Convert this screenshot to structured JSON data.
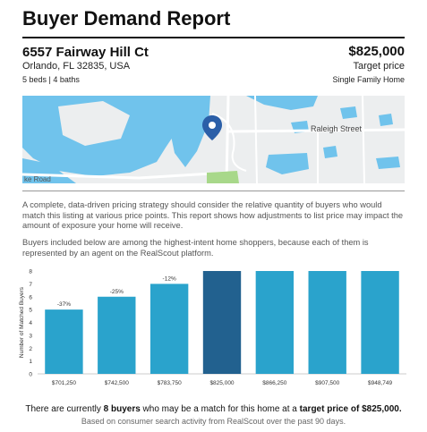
{
  "report": {
    "title": "Buyer Demand Report"
  },
  "property": {
    "address": "6557 Fairway Hill Ct",
    "city": "Orlando, FL 32835, USA",
    "beds_baths": "5 beds | 4 baths",
    "price": "$825,000",
    "price_label": "Target price",
    "type": "Single Family Home"
  },
  "map": {
    "street_label": "Raleigh Street",
    "road_label": "ke Road",
    "water_color": "#70c3ec",
    "land_color": "#eceeef",
    "road_color": "#ffffff",
    "park_color": "#a8d88a",
    "pin_color": "#2b5fa8",
    "pin_icon": "map-pin-icon"
  },
  "description": {
    "p1": "A complete, data-driven pricing strategy should consider the relative quantity of buyers who would match this listing at various price points. This report shows how adjustments to list price may impact the amount of exposure your home will receive.",
    "p2": "Buyers included below are among the highest-intent home shoppers, because each of them is represented by an agent on the RealScout platform."
  },
  "chart_data": {
    "type": "bar",
    "categories": [
      "$701,250",
      "$742,500",
      "$783,750",
      "$825,000",
      "$866,250",
      "$907,500",
      "$948,749"
    ],
    "values": [
      5,
      6,
      7,
      8,
      8,
      8,
      8
    ],
    "data_labels": [
      "-37%",
      "-25%",
      "-12%",
      "",
      "",
      "",
      ""
    ],
    "ylabel": "Number of Matched Buyers",
    "ylim": [
      0,
      8
    ],
    "yticks": [
      0,
      1,
      2,
      3,
      4,
      5,
      6,
      7,
      8
    ],
    "highlight_index": 3,
    "colors": {
      "bar": "#2aa3cc",
      "highlight": "#22618f"
    },
    "grid": false
  },
  "summary": {
    "prefix": "There are currently ",
    "buyers": "8 buyers",
    "middle": " who may be a match for this home at a ",
    "target": "target price of $825,000.",
    "footnote": "Based on consumer search activity from RealScout over the past 90 days."
  }
}
